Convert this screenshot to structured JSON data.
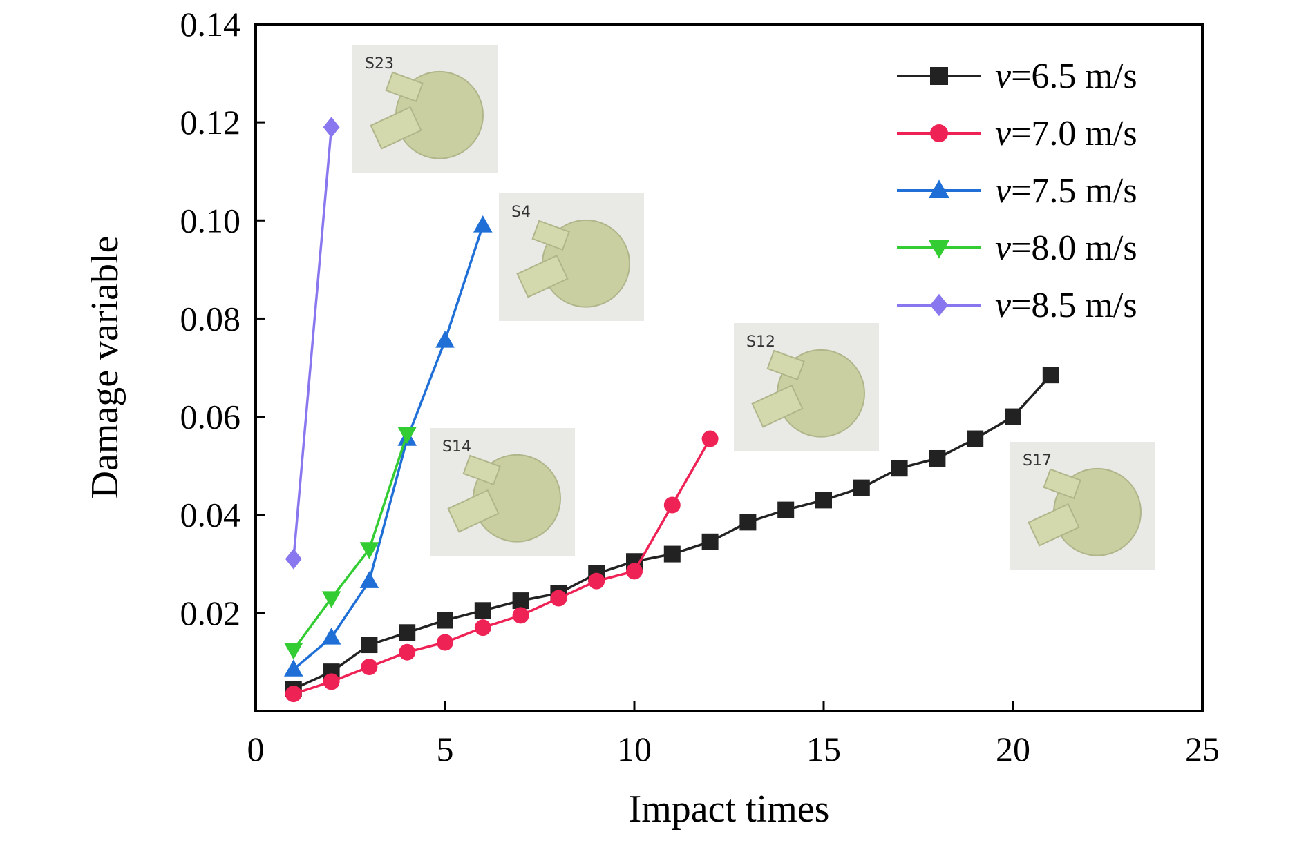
{
  "chart_data": {
    "type": "line",
    "xlabel": "Impact times",
    "ylabel": "Damage variable",
    "xlim": [
      0,
      25
    ],
    "ylim": [
      0,
      0.14
    ],
    "x_ticks": [
      {
        "value": 0,
        "label": "0"
      },
      {
        "value": 5,
        "label": "5"
      },
      {
        "value": 10,
        "label": "10"
      },
      {
        "value": 15,
        "label": "15"
      },
      {
        "value": 20,
        "label": "20"
      },
      {
        "value": 25,
        "label": "25"
      }
    ],
    "y_ticks": [
      {
        "value": 0.02,
        "label": "0.02"
      },
      {
        "value": 0.04,
        "label": "0.04"
      },
      {
        "value": 0.06,
        "label": "0.06"
      },
      {
        "value": 0.08,
        "label": "0.08"
      },
      {
        "value": 0.1,
        "label": "0.10"
      },
      {
        "value": 0.12,
        "label": "0.12"
      },
      {
        "value": 0.14,
        "label": "0.14"
      }
    ],
    "grid": false,
    "legend_position": "top-right",
    "series": [
      {
        "name": "v=6.5 m/s",
        "name_var": "v",
        "name_rest": "=6.5 m/s",
        "color": "#222222",
        "marker": "square",
        "x": [
          1,
          2,
          3,
          4,
          5,
          6,
          7,
          8,
          9,
          10,
          11,
          12,
          13,
          14,
          15,
          16,
          17,
          18,
          19,
          20,
          21
        ],
        "y": [
          0.0045,
          0.008,
          0.0135,
          0.016,
          0.0185,
          0.0205,
          0.0225,
          0.024,
          0.028,
          0.0305,
          0.032,
          0.0345,
          0.0385,
          0.041,
          0.043,
          0.0455,
          0.0495,
          0.0515,
          0.0555,
          0.06,
          0.0685
        ]
      },
      {
        "name": "v=7.0 m/s",
        "name_var": "v",
        "name_rest": "=7.0 m/s",
        "color": "#ee2255",
        "marker": "circle",
        "x": [
          1,
          2,
          3,
          4,
          5,
          6,
          7,
          8,
          9,
          10,
          11,
          12
        ],
        "y": [
          0.0035,
          0.006,
          0.009,
          0.012,
          0.014,
          0.017,
          0.0195,
          0.023,
          0.0265,
          0.0285,
          0.042,
          0.0555
        ]
      },
      {
        "name": "v=7.5 m/s",
        "name_var": "v",
        "name_rest": "=7.5 m/s",
        "color": "#1f6fd6",
        "marker": "triangle-up",
        "x": [
          1,
          2,
          3,
          4,
          5,
          6
        ],
        "y": [
          0.0085,
          0.015,
          0.0265,
          0.0555,
          0.0755,
          0.099
        ]
      },
      {
        "name": "v=8.0 m/s",
        "name_var": "v",
        "name_rest": "=8.0 m/s",
        "color": "#33cc33",
        "marker": "triangle-down",
        "x": [
          1,
          2,
          3,
          4
        ],
        "y": [
          0.0125,
          0.023,
          0.033,
          0.0565
        ]
      },
      {
        "name": "v=8.5 m/s",
        "name_var": "v",
        "name_rest": "=8.5 m/s",
        "color": "#8877ee",
        "marker": "diamond",
        "x": [
          1,
          2
        ],
        "y": [
          0.031,
          0.119
        ]
      }
    ],
    "specimen_photos": [
      {
        "label": "S23"
      },
      {
        "label": "S4"
      },
      {
        "label": "S14"
      },
      {
        "label": "S12"
      },
      {
        "label": "S17"
      }
    ]
  }
}
